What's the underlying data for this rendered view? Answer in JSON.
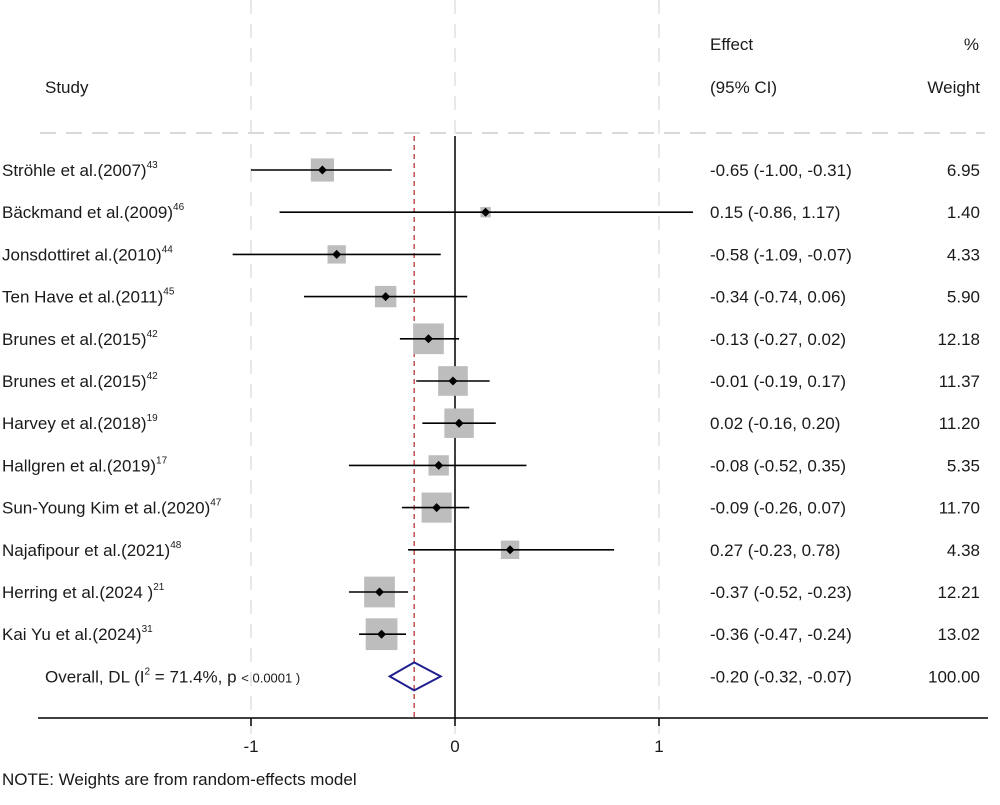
{
  "header": {
    "study": "Study",
    "effect": "Effect",
    "ci": "(95% CI)",
    "pct": "%",
    "weight": "Weight"
  },
  "note": "NOTE: Weights are from random-effects model",
  "colors": {
    "box": "#bdbdbd",
    "line": "#000000",
    "diamond": "#1f1f8f",
    "overall_line": "#c0504d",
    "grid": "#d9d9d9"
  },
  "chart_data": {
    "type": "forest",
    "x_axis": {
      "range": [
        -2,
        2.6
      ],
      "ticks": [
        -1,
        0,
        1
      ],
      "tick_labels": [
        "-1",
        "0",
        "1"
      ]
    },
    "studies": [
      {
        "label": "Ströhle et al.(2007)",
        "sup": "43",
        "effect": -0.65,
        "lower": -1.0,
        "upper": -0.31,
        "ci_text": "-0.65 (-1.00, -0.31)",
        "weight": 6.95,
        "weight_text": "6.95"
      },
      {
        "label": "Bäckmand et al.(2009)",
        "sup": "46",
        "effect": 0.15,
        "lower": -0.86,
        "upper": 1.17,
        "ci_text": "0.15 (-0.86, 1.17)",
        "weight": 1.4,
        "weight_text": "1.40"
      },
      {
        "label": "Jonsdottiret al.(2010)",
        "sup": "44",
        "effect": -0.58,
        "lower": -1.09,
        "upper": -0.07,
        "ci_text": "-0.58 (-1.09, -0.07)",
        "weight": 4.33,
        "weight_text": "4.33"
      },
      {
        "label": "Ten Have et al.(2011)",
        "sup": "45",
        "effect": -0.34,
        "lower": -0.74,
        "upper": 0.06,
        "ci_text": "-0.34 (-0.74, 0.06)",
        "weight": 5.9,
        "weight_text": "5.90"
      },
      {
        "label": "Brunes et al.(2015)",
        "sup": "42",
        "effect": -0.13,
        "lower": -0.27,
        "upper": 0.02,
        "ci_text": "-0.13 (-0.27, 0.02)",
        "weight": 12.18,
        "weight_text": "12.18"
      },
      {
        "label": "Brunes et al.(2015)",
        "sup": "42",
        "effect": -0.01,
        "lower": -0.19,
        "upper": 0.17,
        "ci_text": "-0.01 (-0.19, 0.17)",
        "weight": 11.37,
        "weight_text": "11.37"
      },
      {
        "label": "Harvey et al.(2018)",
        "sup": "19",
        "effect": 0.02,
        "lower": -0.16,
        "upper": 0.2,
        "ci_text": "0.02 (-0.16, 0.20)",
        "weight": 11.2,
        "weight_text": "11.20"
      },
      {
        "label": "Hallgren et al.(2019)",
        "sup": "17",
        "effect": -0.08,
        "lower": -0.52,
        "upper": 0.35,
        "ci_text": "-0.08 (-0.52, 0.35)",
        "weight": 5.35,
        "weight_text": "5.35"
      },
      {
        "label": "Sun-Young Kim et al.(2020)",
        "sup": "47",
        "effect": -0.09,
        "lower": -0.26,
        "upper": 0.07,
        "ci_text": "-0.09 (-0.26, 0.07)",
        "weight": 11.7,
        "weight_text": "11.70"
      },
      {
        "label": "Najafipour et al.(2021)",
        "sup": "48",
        "effect": 0.27,
        "lower": -0.23,
        "upper": 0.78,
        "ci_text": "0.27 (-0.23, 0.78)",
        "weight": 4.38,
        "weight_text": "4.38"
      },
      {
        "label": "Herring et al.(2024 )",
        "sup": "21",
        "effect": -0.37,
        "lower": -0.52,
        "upper": -0.23,
        "ci_text": "-0.37 (-0.52, -0.23)",
        "weight": 12.21,
        "weight_text": "12.21"
      },
      {
        "label": "Kai Yu et al.(2024)",
        "sup": "31",
        "effect": -0.36,
        "lower": -0.47,
        "upper": -0.24,
        "ci_text": "-0.36 (-0.47, -0.24)",
        "weight": 13.02,
        "weight_text": "13.02"
      }
    ],
    "overall": {
      "label_prefix": "Overall, DL (I",
      "label_sup": "2",
      "label_suffix": " = 71.4%, p ",
      "p_text": "< 0.0001 )",
      "effect": -0.2,
      "lower": -0.32,
      "upper": -0.07,
      "ci_text": "-0.20 (-0.32, -0.07)",
      "weight_text": "100.00"
    }
  }
}
